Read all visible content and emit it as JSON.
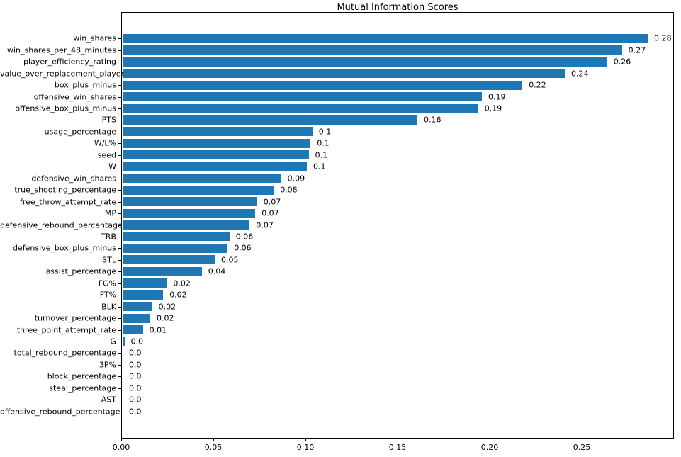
{
  "chart_data": {
    "type": "bar",
    "orientation": "horizontal",
    "title": "Mutual Information Scores",
    "xlabel": "",
    "ylabel": "",
    "grid": false,
    "legend": false,
    "bar_color": "#1f77b4",
    "xlim": [
      0,
      0.3
    ],
    "xticks": [
      0.0,
      0.05,
      0.1,
      0.15,
      0.2,
      0.25
    ],
    "xtick_labels": [
      "0.00",
      "0.05",
      "0.10",
      "0.15",
      "0.20",
      "0.25"
    ],
    "categories": [
      "win_shares",
      "win_shares_per_48_minutes",
      "player_efficiency_rating",
      "value_over_replacement_player",
      "box_plus_minus",
      "offensive_win_shares",
      "offensive_box_plus_minus",
      "PTS",
      "usage_percentage",
      "W/L%",
      "seed",
      "W",
      "defensive_win_shares",
      "true_shooting_percentage",
      "free_throw_attempt_rate",
      "MP",
      "defensive_rebound_percentage",
      "TRB",
      "defensive_box_plus_minus",
      "STL",
      "assist_percentage",
      "FG%",
      "FT%",
      "BLK",
      "turnover_percentage",
      "three_point_attempt_rate",
      "G",
      "total_rebound_percentage",
      "3P%",
      "block_percentage",
      "steal_percentage",
      "AST",
      "offensive_rebound_percentage"
    ],
    "values": [
      0.285,
      0.271,
      0.263,
      0.24,
      0.217,
      0.195,
      0.193,
      0.16,
      0.103,
      0.102,
      0.101,
      0.1,
      0.086,
      0.082,
      0.073,
      0.072,
      0.069,
      0.058,
      0.057,
      0.05,
      0.043,
      0.024,
      0.022,
      0.016,
      0.015,
      0.011,
      0.001,
      0,
      0,
      0,
      0,
      0,
      0
    ],
    "value_labels": [
      "0.28",
      "0.27",
      "0.26",
      "0.24",
      "0.22",
      "0.19",
      "0.19",
      "0.16",
      "0.1",
      "0.1",
      "0.1",
      "0.1",
      "0.09",
      "0.08",
      "0.07",
      "0.07",
      "0.07",
      "0.06",
      "0.06",
      "0.05",
      "0.04",
      "0.02",
      "0.02",
      "0.02",
      "0.02",
      "0.01",
      "0.0",
      "0.0",
      "0.0",
      "0.0",
      "0.0",
      "0.0",
      "0.0"
    ]
  }
}
